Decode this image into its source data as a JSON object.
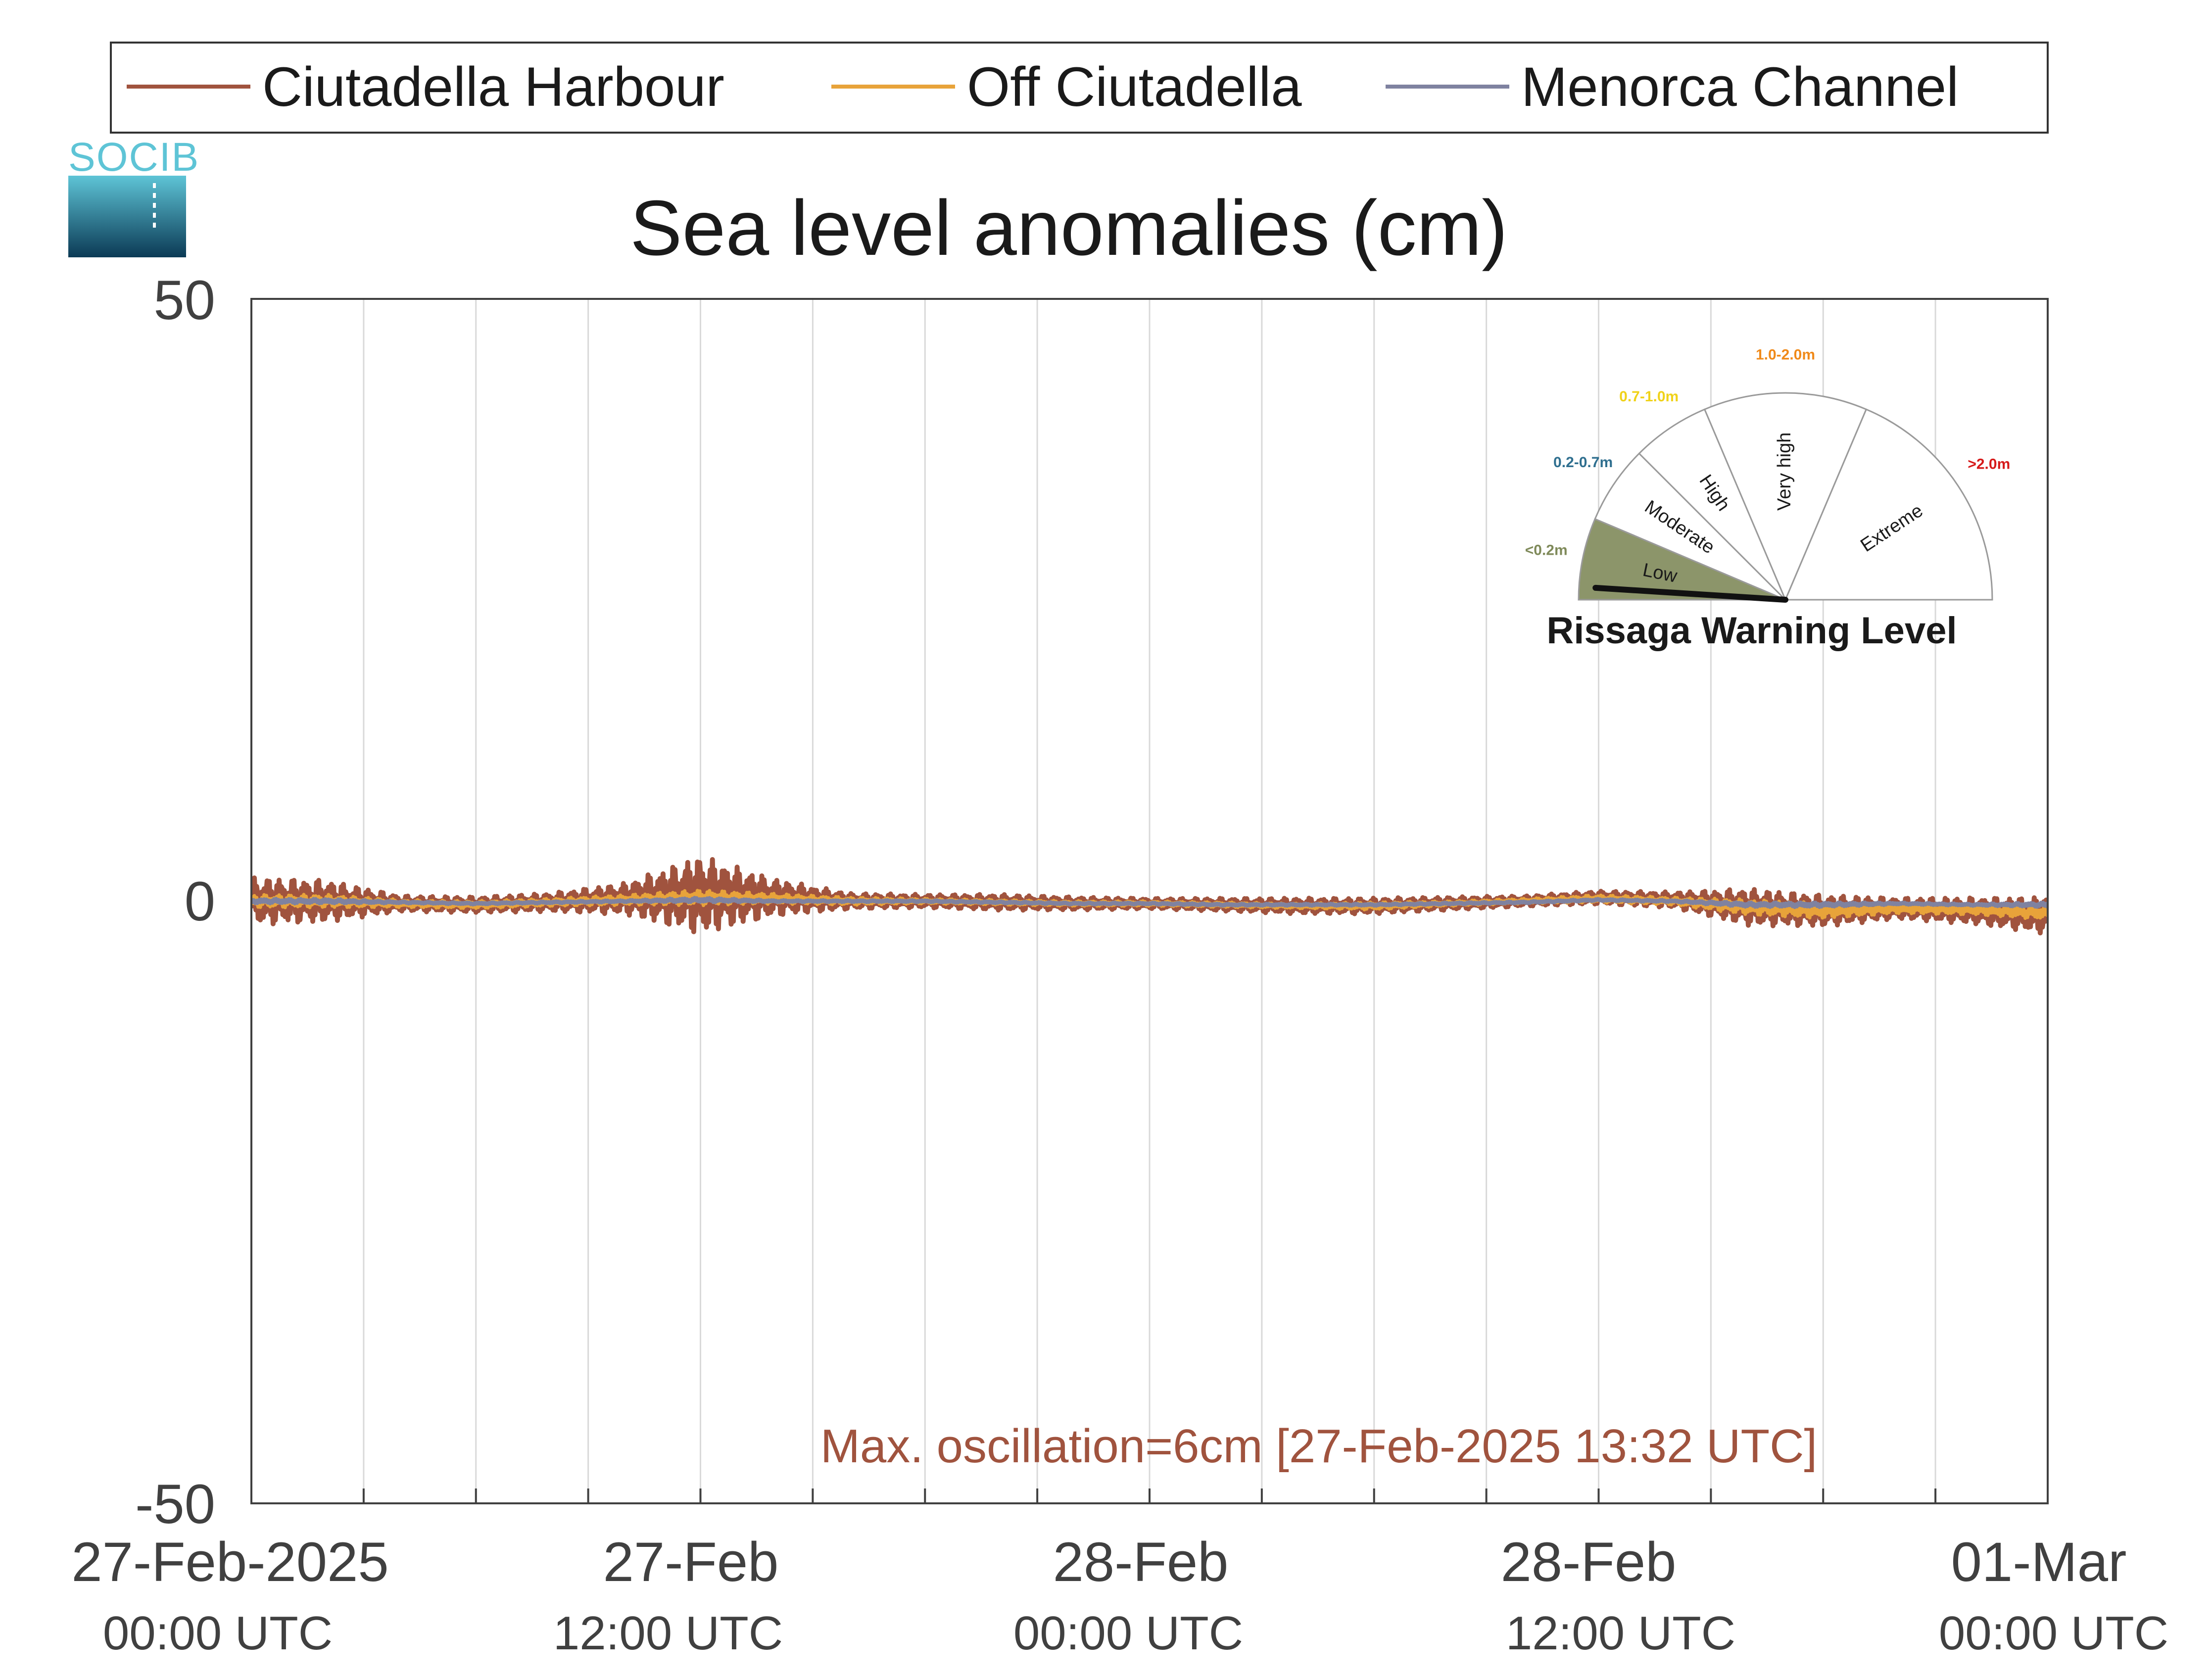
{
  "chart_data": {
    "type": "line",
    "title": "Sea level anomalies (cm)",
    "xlabel": "",
    "ylabel": "",
    "ylim": [
      -50,
      50
    ],
    "xlim": [
      "2025-02-27 00:00",
      "2025-03-01 00:00"
    ],
    "yticks": [
      "50",
      "0",
      "-50"
    ],
    "xticks": [
      {
        "date": "27-Feb-2025",
        "time": "00:00 UTC"
      },
      {
        "date": "27-Feb",
        "time": "12:00 UTC"
      },
      {
        "date": "28-Feb",
        "time": "00:00 UTC"
      },
      {
        "date": "28-Feb",
        "time": "12:00 UTC"
      },
      {
        "date": "01-Mar",
        "time": "00:00 UTC"
      }
    ],
    "grid": "vertical",
    "legend_position": "top",
    "series": [
      {
        "name": "Ciutadella Harbour",
        "color": "#a0533e",
        "x_hours": [
          0,
          2,
          4,
          6,
          8,
          10,
          12,
          14,
          16,
          18,
          20,
          22,
          24,
          26,
          28,
          30,
          32,
          34,
          36,
          38,
          40,
          42,
          44,
          46,
          48
        ],
        "values": [
          0,
          0,
          -0.2,
          -0.3,
          -0.1,
          0.2,
          0.5,
          0.3,
          0,
          0,
          -0.1,
          -0.2,
          -0.2,
          -0.3,
          -0.4,
          -0.4,
          -0.2,
          0,
          0.3,
          0.1,
          -0.5,
          -0.8,
          -0.6,
          -0.8,
          -1.2
        ],
        "amplitude": [
          1.8,
          1.6,
          0.6,
          0.6,
          0.7,
          1.2,
          3.0,
          1.4,
          0.6,
          0.5,
          0.6,
          0.5,
          0.4,
          0.5,
          0.6,
          0.6,
          0.5,
          0.4,
          0.5,
          0.6,
          1.4,
          1.2,
          0.8,
          1.0,
          1.4
        ]
      },
      {
        "name": "Off Ciutadella",
        "color": "#e8a33a",
        "x_hours": [
          0,
          2,
          4,
          6,
          8,
          10,
          12,
          14,
          16,
          18,
          20,
          22,
          24,
          26,
          28,
          30,
          32,
          34,
          36,
          38,
          40,
          42,
          44,
          46,
          48
        ],
        "values": [
          0,
          0,
          -0.2,
          -0.3,
          -0.1,
          0.1,
          0.3,
          0.2,
          0,
          0,
          -0.1,
          -0.2,
          -0.2,
          -0.3,
          -0.4,
          -0.4,
          -0.2,
          0,
          0.2,
          0,
          -0.5,
          -0.8,
          -0.6,
          -0.7,
          -1.0
        ],
        "amplitude": [
          0.5,
          0.5,
          0.3,
          0.3,
          0.3,
          0.4,
          0.6,
          0.4,
          0.3,
          0.2,
          0.2,
          0.2,
          0.2,
          0.2,
          0.2,
          0.3,
          0.2,
          0.2,
          0.3,
          0.3,
          0.6,
          0.6,
          0.4,
          0.4,
          0.5
        ]
      },
      {
        "name": "Menorca Channel",
        "color": "#7f82a0",
        "x_hours": [
          0,
          2,
          4,
          6,
          8,
          10,
          12,
          14,
          16,
          18,
          20,
          22,
          24,
          26,
          28,
          30,
          32,
          34,
          36,
          38,
          40,
          42,
          44,
          46,
          48
        ],
        "values": [
          0,
          0,
          -0.1,
          -0.2,
          -0.1,
          0,
          0.1,
          0,
          0,
          0,
          -0.1,
          -0.2,
          -0.2,
          -0.3,
          -0.3,
          -0.3,
          -0.2,
          -0.1,
          0.1,
          0,
          -0.3,
          -0.3,
          -0.2,
          -0.3,
          -0.3
        ],
        "amplitude": [
          0.2,
          0.2,
          0.1,
          0.1,
          0.1,
          0.1,
          0.2,
          0.1,
          0.1,
          0.1,
          0.1,
          0.1,
          0.1,
          0.1,
          0.1,
          0.1,
          0.1,
          0.1,
          0.1,
          0.1,
          0.2,
          0.2,
          0.1,
          0.1,
          0.2
        ]
      }
    ],
    "annotation": {
      "text": "Max. oscillation=6cm [27-Feb-2025 13:32 UTC]",
      "color": "#a0533e"
    }
  },
  "gauge": {
    "title": "Rissaga Warning Level",
    "current_level": "Low",
    "needle_fraction": 0.02,
    "segments": [
      {
        "label": "Low",
        "range": "<0.2m",
        "range_color": "#7f8a5a",
        "fill": "#8c956a"
      },
      {
        "label": "Moderate",
        "range": "0.2-0.7m",
        "range_color": "#2f6f8f",
        "fill": "#ffffff"
      },
      {
        "label": "High",
        "range": "0.7-1.0m",
        "range_color": "#f0d21a",
        "fill": "#ffffff"
      },
      {
        "label": "Very high",
        "range": "1.0-2.0m",
        "range_color": "#f08a1a",
        "fill": "#ffffff"
      },
      {
        "label": "Extreme",
        "range": ">2.0m",
        "range_color": "#d61a1a",
        "fill": "#ffffff"
      }
    ]
  },
  "logo": {
    "text": "SOCIB",
    "color_top": "#5ec4d6",
    "color_bottom": "#0b3a55"
  }
}
